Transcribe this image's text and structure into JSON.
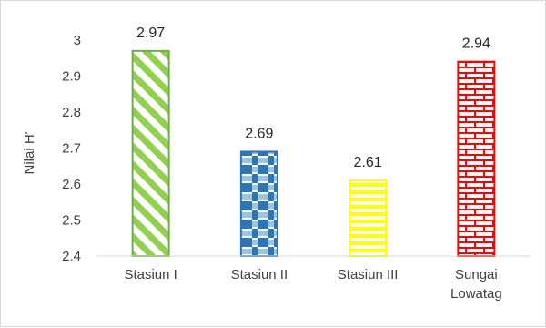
{
  "chart_data": {
    "type": "bar",
    "title": "",
    "xlabel": "",
    "ylabel": "Nilai H'",
    "ylim": [
      2.4,
      3.0
    ],
    "yticks": [
      "2.4",
      "2.5",
      "2.6",
      "2.7",
      "2.8",
      "2.9",
      "3"
    ],
    "categories": [
      [
        "Stasiun I"
      ],
      [
        "Stasiun II"
      ],
      [
        "Stasiun III"
      ],
      [
        "Sungai",
        "Lowatag"
      ]
    ],
    "values": [
      2.97,
      2.69,
      2.61,
      2.94
    ],
    "value_labels": [
      "2.97",
      "2.69",
      "2.61",
      "2.94"
    ],
    "bar_patterns": [
      "diagonal-stripes",
      "checker",
      "horizontal-lines",
      "brick"
    ],
    "bar_colors": [
      "#70ad47",
      "#2e75b6",
      "#ffff00",
      "#ff0000"
    ],
    "grid": false,
    "legend": "none"
  }
}
